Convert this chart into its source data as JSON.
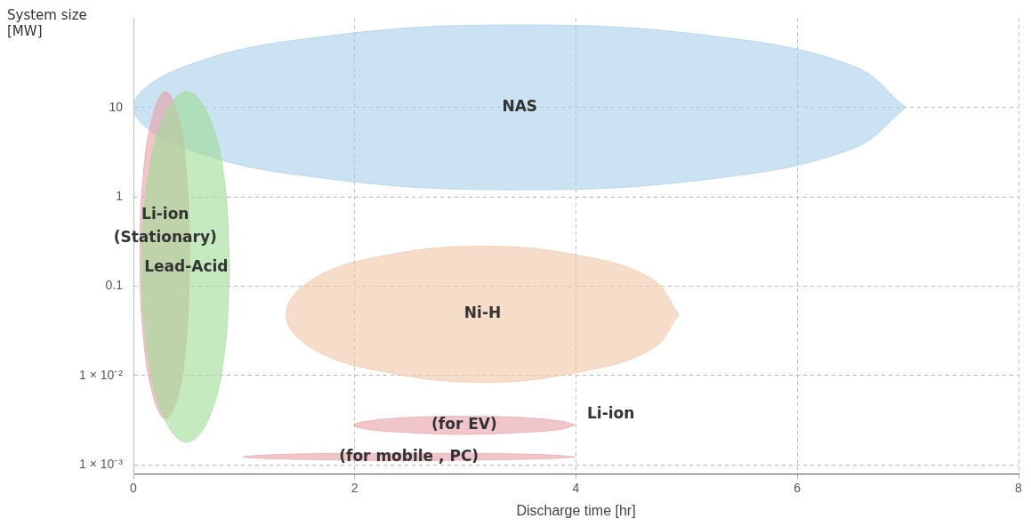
{
  "chart_data": {
    "type": "area",
    "xlabel": "Discharge time [hr]",
    "ylabel": "System size [MW]",
    "log": "y",
    "grid": true,
    "legend": false,
    "marker": "none",
    "xlim": [
      0,
      8
    ],
    "xticks": [
      0,
      2,
      4,
      6,
      8
    ],
    "ylim": [
      0.0008,
      100
    ],
    "yticks": [
      {
        "value": 0.001,
        "label": "1 × 10⁻³"
      },
      {
        "value": 0.01,
        "label": "1 × 10⁻²"
      },
      0.1,
      1,
      10
    ],
    "series": [
      {
        "name": "Lead-Acid",
        "color": "#9edc96",
        "x": [
          0.87,
          0.82,
          0.68,
          0.48,
          0.28,
          0.13,
          0.08,
          0.13,
          0.28,
          0.48,
          0.68,
          0.82,
          0.87
        ],
        "values": [
          0.16,
          1.6,
          8.1,
          15,
          8.1,
          1.6,
          0.16,
          0.017,
          0.0033,
          0.0018,
          0.0033,
          0.017,
          0.16
        ]
      },
      {
        "name": "Li-ion\n(Stationary)",
        "color": "#e8a0a6",
        "x": [
          0.51,
          0.48,
          0.4,
          0.29,
          0.18,
          0.09,
          0.06,
          0.09,
          0.18,
          0.29,
          0.4,
          0.48,
          0.51
        ],
        "values": [
          0.22,
          1.8,
          8.5,
          15,
          8.5,
          1.8,
          0.22,
          0.027,
          0.0058,
          0.0033,
          0.0058,
          0.027,
          0.22
        ]
      },
      {
        "name": "NAS",
        "color": "#a9cfea",
        "x": [
          6.98,
          6.51,
          5.24,
          3.49,
          1.75,
          0.47,
          0,
          0.47,
          1.75,
          3.49,
          5.24,
          6.51,
          6.98
        ],
        "values": [
          10,
          29,
          63,
          84,
          63,
          29,
          10,
          3.5,
          1.6,
          1.2,
          1.6,
          3.5,
          10
        ]
      },
      {
        "name": "Ni-H",
        "color": "#f0c6a6",
        "x": [
          4.93,
          4.69,
          4.04,
          3.16,
          2.27,
          1.62,
          1.38,
          1.62,
          2.27,
          3.16,
          4.04,
          4.69,
          4.93
        ],
        "values": [
          0.048,
          0.12,
          0.22,
          0.28,
          0.22,
          0.12,
          0.048,
          0.02,
          0.011,
          0.0084,
          0.011,
          0.02,
          0.048
        ]
      },
      {
        "name": "(for EV)",
        "color": "#e8a0a6",
        "x": [
          3.99,
          3.86,
          3.49,
          2.99,
          2.49,
          2.12,
          1.99,
          2.12,
          2.49,
          2.99,
          3.49,
          3.86,
          3.99
        ],
        "values": [
          0.0028,
          0.0031,
          0.0034,
          0.0035,
          0.0034,
          0.0031,
          0.0028,
          0.0025,
          0.0023,
          0.0022,
          0.0023,
          0.0025,
          0.0028
        ]
      },
      {
        "name": "(for mobile , PC)",
        "color": "#e8a0a6",
        "x": [
          3.99,
          3.79,
          3.24,
          2.49,
          1.74,
          1.19,
          0.99,
          1.19,
          1.74,
          2.49,
          3.24,
          3.79,
          3.99
        ],
        "values": [
          0.00123,
          0.00129,
          0.00134,
          0.00135,
          0.00134,
          0.00129,
          0.00123,
          0.00118,
          0.00114,
          0.00112,
          0.00114,
          0.00118,
          0.00123
        ]
      }
    ],
    "annotations": [
      "Li-ion"
    ]
  }
}
